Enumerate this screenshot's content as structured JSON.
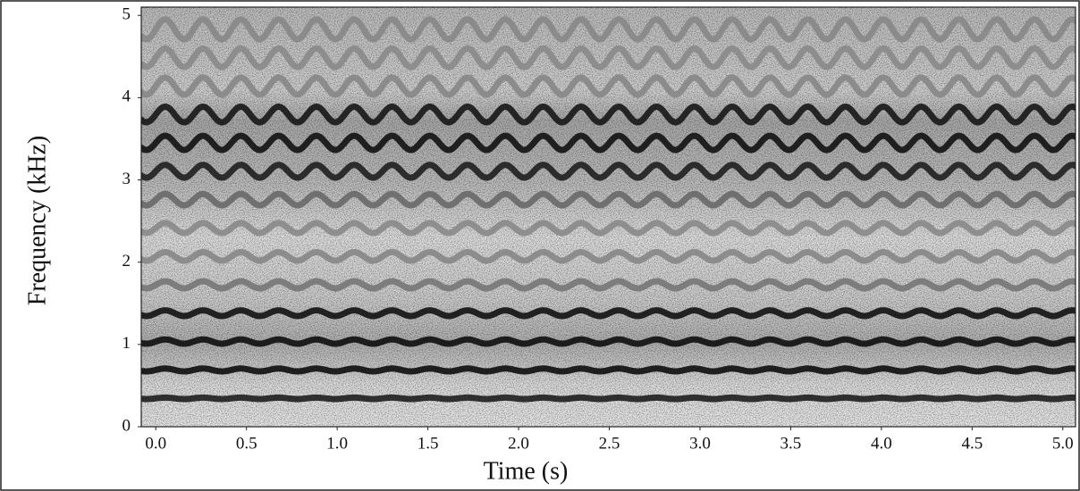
{
  "chart_data": {
    "type": "spectrogram",
    "xlabel": "Time (s)",
    "ylabel": "Frequency (kHz)",
    "xlim": [
      -0.08,
      5.07
    ],
    "ylim": [
      0,
      5.1
    ],
    "xticks": [
      {
        "value": 0,
        "label": "0.0"
      },
      0.5,
      {
        "value": 1,
        "label": "1.0"
      },
      1.5,
      {
        "value": 2,
        "label": "2.0"
      },
      2.5,
      {
        "value": 3,
        "label": "3.0"
      },
      3.5,
      {
        "value": 4,
        "label": "4.0"
      },
      4.5,
      {
        "value": 5,
        "label": "5.0"
      }
    ],
    "yticks": [
      0,
      1,
      2,
      3,
      4,
      5
    ],
    "vibrato_rate": 4.8,
    "vibrato_extent": 0.025,
    "harmonics": [
      {
        "value": 0.345,
        "color": "#222222"
      },
      {
        "value": 0.69,
        "color": "#111111"
      },
      {
        "value": 1.035,
        "color": "#111111"
      },
      {
        "value": 1.38,
        "color": "#151515"
      },
      {
        "value": 1.725,
        "color": "#777777"
      },
      {
        "value": 2.07,
        "color": "#888888"
      },
      {
        "value": 2.415,
        "color": "#8a8a8a"
      },
      {
        "value": 2.76,
        "color": "#6a6a6a"
      },
      {
        "value": 3.105,
        "color": "#222222"
      },
      {
        "value": 3.45,
        "color": "#151515"
      },
      {
        "value": 3.795,
        "color": "#1a1a1a"
      },
      {
        "value": 4.14,
        "color": "#888888"
      },
      {
        "value": 4.485,
        "color": "#8a8a8a"
      },
      {
        "value": 4.83,
        "color": "#888888"
      }
    ]
  }
}
